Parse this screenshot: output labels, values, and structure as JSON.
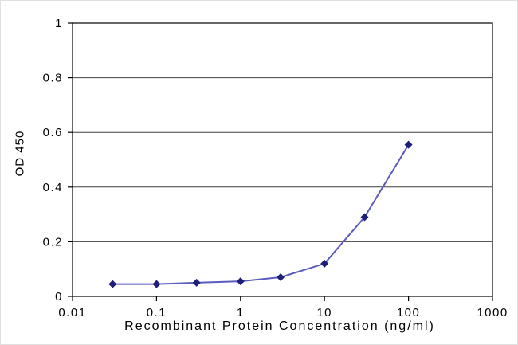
{
  "chart_data": {
    "type": "line",
    "title": "",
    "xlabel": "Recombinant Protein Concentration (ng/ml)",
    "ylabel": "OD 450",
    "xscale": "log",
    "xlim": [
      0.01,
      1000
    ],
    "ylim": [
      0,
      1
    ],
    "xticks": [
      0.01,
      0.1,
      1,
      10,
      100,
      1000
    ],
    "xtick_labels": [
      "0.01",
      "0.1",
      "1",
      "10",
      "100",
      "1000"
    ],
    "yticks": [
      0,
      0.2,
      0.4,
      0.6,
      0.8,
      1
    ],
    "ytick_labels": [
      "0",
      "0.2",
      "0.4",
      "0.6",
      "0.8",
      "1"
    ],
    "x": [
      0.03,
      0.1,
      0.3,
      1,
      3,
      10,
      30,
      100
    ],
    "y": [
      0.045,
      0.045,
      0.05,
      0.055,
      0.07,
      0.12,
      0.29,
      0.555
    ],
    "grid": "horizontal",
    "legend": "none",
    "marker": "diamond",
    "colors": {
      "line": "#5b5bc0",
      "marker": "#1f1f7a",
      "grid": "#404040",
      "frame": "#000000",
      "background": "#ffffff"
    }
  }
}
